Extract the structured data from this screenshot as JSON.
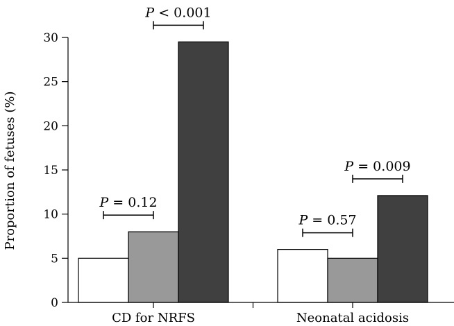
{
  "chart_data": {
    "type": "bar",
    "title": "",
    "xlabel": "",
    "ylabel": "Proportion of fetuses (%)",
    "ylim": [
      0,
      30
    ],
    "yticks": [
      "0",
      "5",
      "10",
      "15",
      "20",
      "25",
      "30"
    ],
    "categories": [
      "CD for NRFS",
      "Neonatal acidosis"
    ],
    "series": [
      {
        "values": [
          5,
          6
        ],
        "color": "#ffffff"
      },
      {
        "values": [
          8,
          5
        ],
        "color": "#999999"
      },
      {
        "values": [
          29.5,
          12.1
        ],
        "color": "#404040"
      }
    ],
    "grid": false,
    "legend": "none",
    "annotations": [
      {
        "category": 0,
        "from_series": 0,
        "to_series": 1,
        "p_symbol": "P",
        "p_text": " = 0.12"
      },
      {
        "category": 0,
        "from_series": 1,
        "to_series": 2,
        "p_symbol": "P",
        "p_text": " < 0.001"
      },
      {
        "category": 1,
        "from_series": 0,
        "to_series": 1,
        "p_symbol": "P",
        "p_text": " = 0.57"
      },
      {
        "category": 1,
        "from_series": 1,
        "to_series": 2,
        "p_symbol": "P",
        "p_text": " = 0.009"
      }
    ]
  }
}
